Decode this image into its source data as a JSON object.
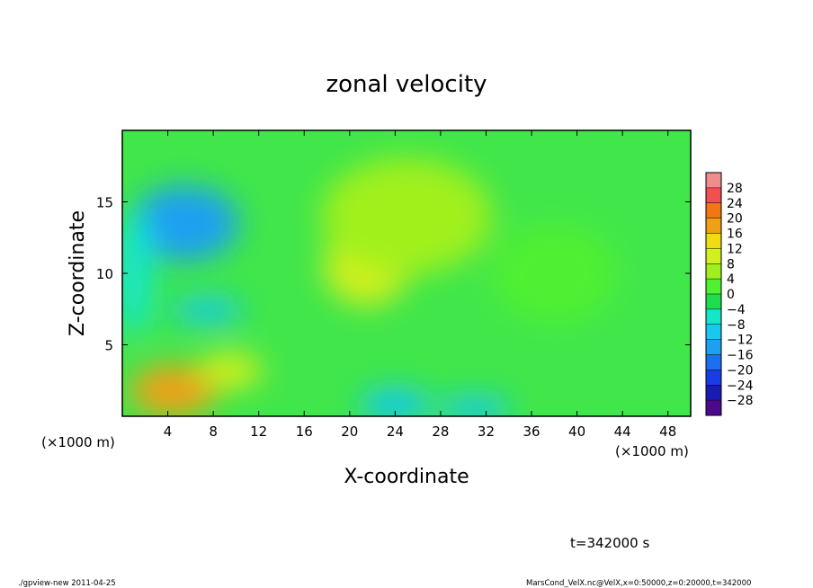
{
  "chart_data": {
    "type": "heatmap",
    "title": "zonal velocity",
    "xlabel": "X-coordinate",
    "ylabel": "Z-coordinate",
    "x_unit_label": "(×1000 m)",
    "x_unit_label_right": "(×1000 m)",
    "xlim": [
      0,
      50
    ],
    "ylim": [
      0,
      20
    ],
    "x_ticks": [
      4,
      8,
      12,
      16,
      20,
      24,
      28,
      32,
      36,
      40,
      44,
      48
    ],
    "y_ticks": [
      5,
      10,
      15
    ],
    "time_label": "t=342000 s",
    "colorbar": {
      "levels": [
        -28,
        -24,
        -20,
        -16,
        -12,
        -8,
        -4,
        0,
        4,
        8,
        12,
        16,
        20,
        24,
        28
      ],
      "colors": [
        "#4b0a8c",
        "#1a1ab4",
        "#1a3ce6",
        "#1e6ef0",
        "#1ea0f0",
        "#18c8f0",
        "#14e6c8",
        "#1ede50",
        "#50f032",
        "#a0f01e",
        "#d2f01e",
        "#f0dc14",
        "#f0a014",
        "#f07814",
        "#f05050",
        "#f08c8c"
      ]
    },
    "features": [
      {
        "x": 5.5,
        "z": 13.5,
        "value": -14
      },
      {
        "x": 7.5,
        "z": 7.4,
        "value": -9
      },
      {
        "x": 4.5,
        "z": 1.8,
        "value": 18
      },
      {
        "x": 9.5,
        "z": 3.2,
        "value": 10
      },
      {
        "x": 21.5,
        "z": 10.5,
        "value": 9
      },
      {
        "x": 25,
        "z": 14,
        "value": 7
      },
      {
        "x": 24,
        "z": 0.8,
        "value": -9
      },
      {
        "x": 31,
        "z": 0.5,
        "value": -10
      },
      {
        "x": 1,
        "z": 10,
        "value": -8
      },
      {
        "x": 38,
        "z": 10,
        "value": 1
      }
    ]
  },
  "footer": {
    "left": "./gpview-new   2011-04-25",
    "right": "MarsCond_VelX.nc@VelX,x=0:50000,z=0:20000,t=342000"
  }
}
